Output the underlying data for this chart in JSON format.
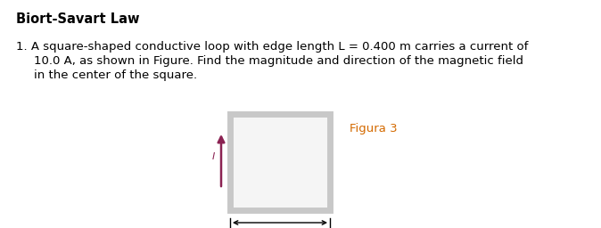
{
  "title": "Biort-Savart Law",
  "line1": "1. A square-shaped conductive loop with edge length L = 0.400 m carries a current of",
  "line2": "10.0 A, as shown in Figure. Find the magnitude and direction of the magnetic field",
  "line3": "in the center of the square.",
  "figura_label": "Figura 3",
  "figura_color": "#d46a00",
  "bg_color": "#ffffff",
  "title_fontsize": 10.5,
  "body_fontsize": 9.5,
  "figura_fontsize": 9.5,
  "arrow_color": "#8b2252",
  "square_lw": 5,
  "square_edgecolor": "#c8c8c8",
  "square_facecolor": "#f5f5f5"
}
